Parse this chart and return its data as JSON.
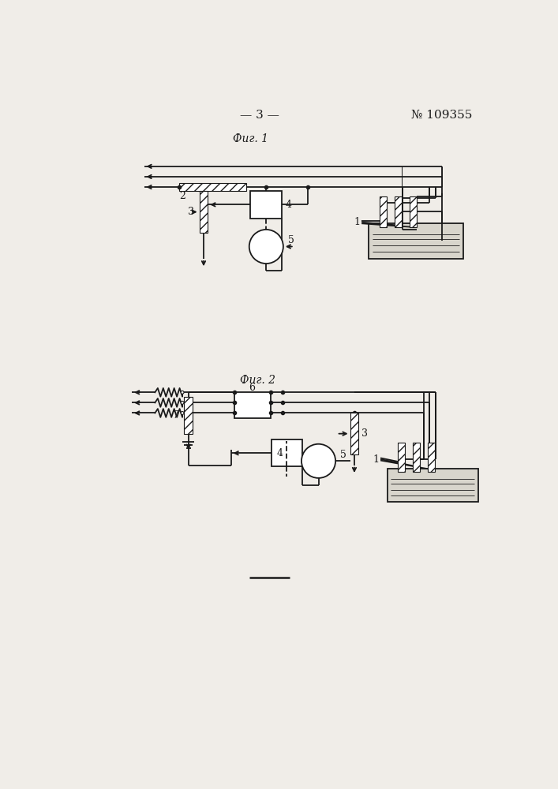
{
  "page_title_left": "— 3 —",
  "page_title_right": "№ 109355",
  "fig1_label": "Фиг. 1",
  "fig2_label": "Фиг. 2",
  "bg_color": "#f0ede8",
  "line_color": "#1a1a1a",
  "label1": "1",
  "label2": "2",
  "label3": "3",
  "label4": "4",
  "label5": "5",
  "label6": "6",
  "label7": "7"
}
